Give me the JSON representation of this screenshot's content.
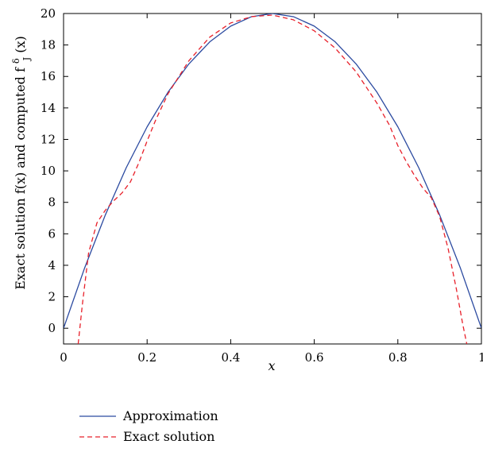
{
  "chart_data": {
    "type": "line",
    "xlabel": "x",
    "ylabel": "Exact solution f(x) and computed f",
    "ylabel_sup": "δ",
    "ylabel_sub": "J",
    "ylabel_suffix": "(x)",
    "xlim": [
      0,
      1
    ],
    "ylim": [
      -1,
      20
    ],
    "x_ticks": [
      0,
      0.2,
      0.4,
      0.6,
      0.8,
      1
    ],
    "x_tick_labels": [
      "0",
      "0.2",
      "0.4",
      "0.6",
      "0.8",
      "1"
    ],
    "y_ticks": [
      0,
      2,
      4,
      6,
      8,
      10,
      12,
      14,
      16,
      18,
      20
    ],
    "y_tick_labels": [
      "0",
      "2",
      "4",
      "6",
      "8",
      "10",
      "12",
      "14",
      "16",
      "18",
      "20"
    ],
    "grid": false,
    "legend_position": "bottom-left",
    "series": [
      {
        "name": "Approximation",
        "color": "#2b4aa0",
        "style": "solid",
        "x": [
          0,
          0.05,
          0.1,
          0.15,
          0.2,
          0.25,
          0.3,
          0.35,
          0.4,
          0.45,
          0.5,
          0.55,
          0.6,
          0.65,
          0.7,
          0.75,
          0.8,
          0.85,
          0.9,
          0.95,
          1.0
        ],
        "y": [
          0,
          3.8,
          7.2,
          10.2,
          12.8,
          15.0,
          16.8,
          18.2,
          19.2,
          19.8,
          20.0,
          19.8,
          19.2,
          18.2,
          16.8,
          15.0,
          12.8,
          10.2,
          7.2,
          3.8,
          0
        ]
      },
      {
        "name": "Exact solution",
        "color": "#e8202a",
        "style": "dashed",
        "x": [
          0.035,
          0.045,
          0.06,
          0.08,
          0.1,
          0.12,
          0.14,
          0.16,
          0.18,
          0.2,
          0.22,
          0.25,
          0.3,
          0.35,
          0.4,
          0.45,
          0.5,
          0.55,
          0.6,
          0.65,
          0.7,
          0.75,
          0.78,
          0.8,
          0.82,
          0.84,
          0.86,
          0.88,
          0.9,
          0.92,
          0.94,
          0.955,
          0.965
        ],
        "y": [
          -1.0,
          1.5,
          4.8,
          6.7,
          7.5,
          8.1,
          8.6,
          9.3,
          10.5,
          11.9,
          13.2,
          14.9,
          17.0,
          18.5,
          19.4,
          19.8,
          19.9,
          19.6,
          18.9,
          17.8,
          16.3,
          14.3,
          12.9,
          11.6,
          10.6,
          9.7,
          8.9,
          8.3,
          7.1,
          5.1,
          2.5,
          0.3,
          -1.0
        ]
      }
    ]
  }
}
